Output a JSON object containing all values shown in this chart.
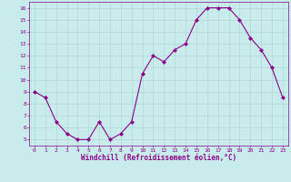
{
  "x": [
    0,
    1,
    2,
    3,
    4,
    5,
    6,
    7,
    8,
    9,
    10,
    11,
    12,
    13,
    14,
    15,
    16,
    17,
    18,
    19,
    20,
    21,
    22,
    23
  ],
  "y": [
    9,
    8.5,
    6.5,
    5.5,
    5,
    5,
    6.5,
    5,
    5.5,
    6.5,
    10.5,
    12,
    11.5,
    12.5,
    13,
    15,
    16,
    16,
    16,
    15,
    13.5,
    12.5,
    11,
    8.5
  ],
  "line_color": "#8b008b",
  "marker": "D",
  "marker_size": 2.0,
  "bg_color": "#c8ecec",
  "grid_color": "#b0d8d8",
  "xlabel": "Windchill (Refroidissement éolien,°C)",
  "xlabel_color": "#8b008b",
  "tick_color": "#8b008b",
  "xlim": [
    -0.5,
    23.5
  ],
  "ylim": [
    4.5,
    16.5
  ],
  "yticks": [
    5,
    6,
    7,
    8,
    9,
    10,
    11,
    12,
    13,
    14,
    15,
    16
  ],
  "xticks": [
    0,
    1,
    2,
    3,
    4,
    5,
    6,
    7,
    8,
    9,
    10,
    11,
    12,
    13,
    14,
    15,
    16,
    17,
    18,
    19,
    20,
    21,
    22,
    23
  ],
  "figsize": [
    3.2,
    2.0
  ],
  "dpi": 100,
  "tick_fontsize": 4.5,
  "xlabel_fontsize": 5.5,
  "linewidth": 0.8
}
